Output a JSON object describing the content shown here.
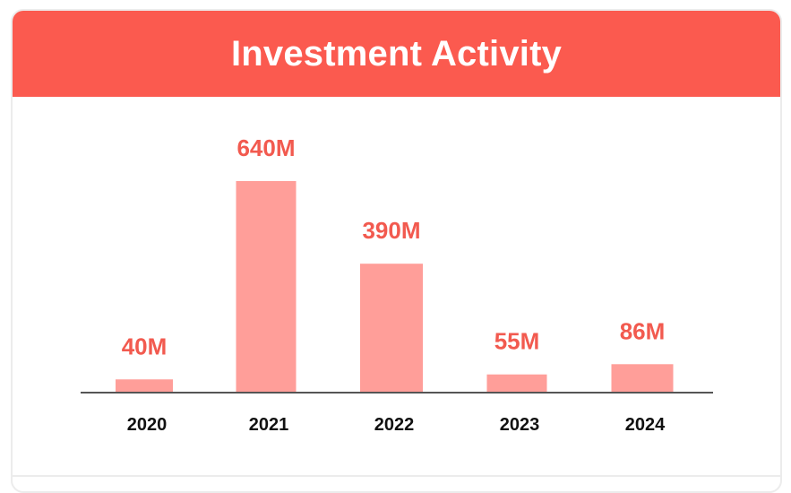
{
  "header": {
    "title": "Investment Activity"
  },
  "colors": {
    "header_bg": "#fb5a4f",
    "bar_fill": "#ff9e99",
    "value_label": "#f25a4f",
    "axis_line": "#555555"
  },
  "chart_data": {
    "type": "bar",
    "title": "Investment Activity",
    "categories": [
      "2020",
      "2021",
      "2022",
      "2023",
      "2024"
    ],
    "values": [
      40,
      640,
      390,
      55,
      86
    ],
    "value_labels": [
      "40M",
      "640M",
      "390M",
      "55M",
      "86M"
    ],
    "unit": "M",
    "ylim": [
      0,
      640
    ],
    "grid": false,
    "legend": "none"
  }
}
